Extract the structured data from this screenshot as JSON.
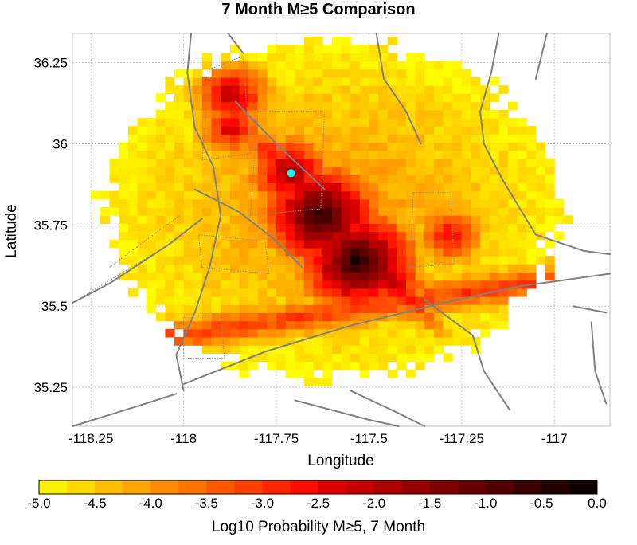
{
  "chart_data": {
    "type": "heatmap",
    "title": "7 Month M≥5 Comparison",
    "xlabel": "Longitude",
    "ylabel": "Latitude",
    "xlim": [
      -118.3,
      -116.85
    ],
    "ylim": [
      35.13,
      36.34
    ],
    "xticks": [
      -118.25,
      -118,
      -117.75,
      -117.5,
      -117.25,
      -117
    ],
    "xtick_labels": [
      "-118.25",
      "-118",
      "-117.75",
      "-117.5",
      "-117.25",
      "-117"
    ],
    "yticks": [
      35.25,
      35.5,
      35.75,
      36,
      36.25
    ],
    "ytick_labels": [
      "35.25",
      "35.5",
      "35.75",
      "36",
      "36.25"
    ],
    "grid": true,
    "region_center": [
      -117.6,
      35.8
    ],
    "region_radius_deg": [
      0.61,
      0.52
    ],
    "hotspots": [
      {
        "lon": -117.71,
        "lat": 35.91,
        "log10_probability": -1.5
      },
      {
        "lon": -117.63,
        "lat": 35.78,
        "log10_probability": -0.3
      },
      {
        "lon": -117.53,
        "lat": 35.64,
        "log10_probability": -0.2
      },
      {
        "lon": -117.87,
        "lat": 36.15,
        "log10_probability": -1.8
      },
      {
        "lon": -117.87,
        "lat": 36.05,
        "log10_probability": -2.2
      },
      {
        "lon": -117.28,
        "lat": 35.72,
        "log10_probability": -2.3
      }
    ],
    "marker": {
      "lon": -117.71,
      "lat": 35.91,
      "color": "#00ffff"
    },
    "colorbar": {
      "label": "Log10 Probability M≥5, 7 Month",
      "range": [
        -5.0,
        0.0
      ],
      "ticks": [
        -5.0,
        -4.5,
        -4.0,
        -3.5,
        -3.0,
        -2.5,
        -2.0,
        -1.5,
        -1.0,
        -0.5,
        0.0
      ],
      "tick_labels": [
        "-5.0",
        "-4.5",
        "-4.0",
        "-3.5",
        "-3.0",
        "-2.5",
        "-2.0",
        "-1.5",
        "-1.0",
        "-0.5",
        "0.0"
      ],
      "colormap": "hot-reversed"
    },
    "colors": {
      "fault_line": "#808080",
      "grid": "#c8c8c8",
      "boundary": "#8c8c8c"
    }
  }
}
